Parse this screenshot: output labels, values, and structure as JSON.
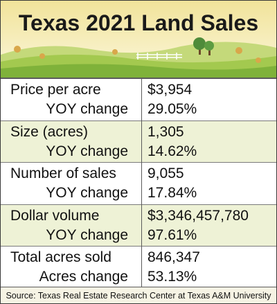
{
  "title": "Texas 2021 Land Sales",
  "rows": [
    {
      "label": "Price per acre",
      "value": "$3,954",
      "sub_label": "YOY change",
      "sub_value": "29.05%"
    },
    {
      "label": "Size (acres)",
      "value": "1,305",
      "sub_label": "YOY change",
      "sub_value": "14.62%"
    },
    {
      "label": "Number of sales",
      "value": "9,055",
      "sub_label": "YOY change",
      "sub_value": "17.84%"
    },
    {
      "label": "Dollar volume",
      "value": "$3,346,457,780",
      "sub_label": "YOY change",
      "sub_value": "97.61%"
    },
    {
      "label": "Total acres sold",
      "value": "846,347",
      "sub_label": "Acres change",
      "sub_value": "53.13%"
    }
  ],
  "source": "Source: Texas Real Estate Research Center at Texas A&M University",
  "colors": {
    "sky_top": "#f3e9a8",
    "sky_bottom": "#fbf6d6",
    "hill_front": "#8cbf3f",
    "hill_back": "#b9d46a",
    "row_alt": "#eef2d6"
  }
}
